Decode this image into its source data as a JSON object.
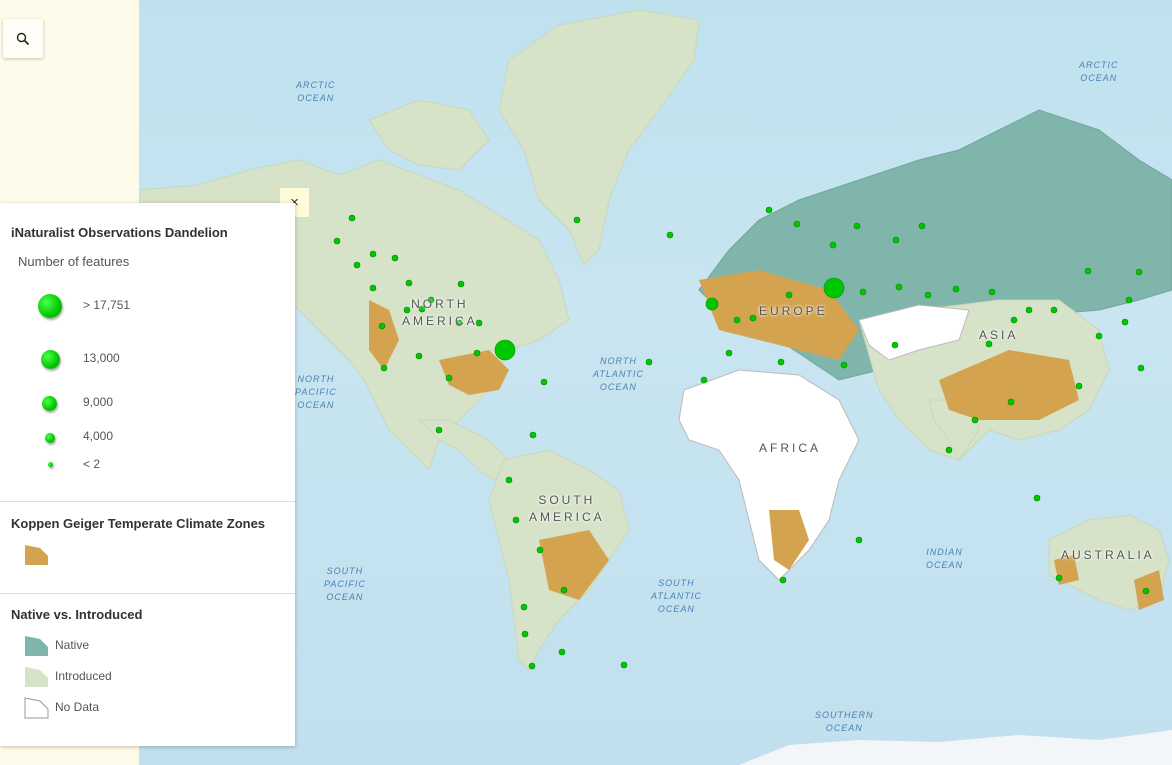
{
  "search": {
    "icon": "search-icon"
  },
  "legend": {
    "layer1": {
      "title": "iNaturalist Observations Dandelion",
      "subtitle": "Number of features",
      "classes": [
        {
          "label": "> 17,751",
          "size": 24
        },
        {
          "label": "13,000",
          "size": 19
        },
        {
          "label": "9,000",
          "size": 15
        },
        {
          "label": "4,000",
          "size": 10
        },
        {
          "label": "< 2",
          "size": 5
        }
      ]
    },
    "layer2": {
      "title": "Koppen Geiger Temperate Climate Zones",
      "color": "#d4a34f"
    },
    "layer3": {
      "title": "Native vs. Introduced",
      "items": [
        {
          "label": "Native",
          "color": "#7fb5ab"
        },
        {
          "label": "Introduced",
          "color": "#d6e3c8"
        },
        {
          "label": "No Data",
          "color": "#ffffff"
        }
      ]
    },
    "close_label": "×"
  },
  "map": {
    "ocean_labels": [
      {
        "id": "arctic-ocean-west",
        "text": "ARCTIC\nOCEAN"
      },
      {
        "id": "arctic-ocean-east",
        "text": "ARCTIC\nOCEAN"
      },
      {
        "id": "north-pacific-ocean",
        "text": "NORTH\nPACIFIC\nOCEAN"
      },
      {
        "id": "north-atlantic-ocean",
        "text": "NORTH\nATLANTIC\nOCEAN"
      },
      {
        "id": "south-pacific-ocean",
        "text": "SOUTH\nPACIFIC\nOCEAN"
      },
      {
        "id": "south-atlantic-ocean",
        "text": "SOUTH\nATLANTIC\nOCEAN"
      },
      {
        "id": "indian-ocean",
        "text": "INDIAN\nOCEAN"
      },
      {
        "id": "southern-ocean",
        "text": "SOUTHERN\nOCEAN"
      }
    ],
    "continent_labels": [
      {
        "id": "north-america",
        "text": "NORTH\nAMERICA"
      },
      {
        "id": "south-america",
        "text": "SOUTH\nAMERICA"
      },
      {
        "id": "europe",
        "text": "EUROPE"
      },
      {
        "id": "asia",
        "text": "ASIA"
      },
      {
        "id": "africa",
        "text": "AFRICA"
      },
      {
        "id": "australia",
        "text": "AUSTRALIA"
      }
    ],
    "colors": {
      "native": "#7fb5ab",
      "introduced": "#d6e3c8",
      "temperate": "#d4a34f",
      "nodata": "#ffffff",
      "ocean": "#c4e3f0",
      "points": "#00c800"
    }
  }
}
